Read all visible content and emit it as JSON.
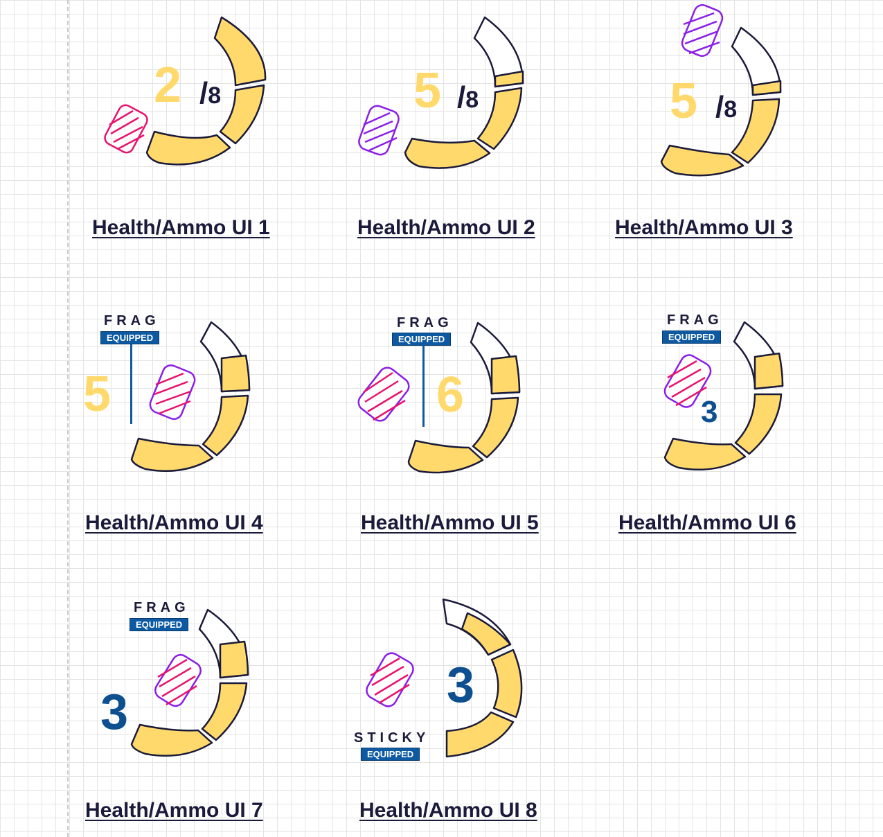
{
  "colors": {
    "fill_yellow": "#ffd96b",
    "outline": "#1a1a3a",
    "grenade_pink": "#e8126d",
    "grenade_purple": "#8a1ee8",
    "tag_blue": "#0d5aa3",
    "count_blue": "#0d4f8f"
  },
  "mockups": [
    {
      "caption": "Health/Ammo UI 1",
      "count": "2",
      "slash": "/",
      "total": "8",
      "grenade_icon": "pink-grenade-icon"
    },
    {
      "caption": "Health/Ammo UI 2",
      "count": "5",
      "slash": "/",
      "total": "8",
      "grenade_icon": "purple-grenade-icon"
    },
    {
      "caption": "Health/Ammo UI 3",
      "count": "5",
      "slash": "/",
      "total": "8",
      "grenade_icon": "purple-grenade-icon"
    },
    {
      "caption": "Health/Ammo UI 4",
      "count": "5",
      "weapon": "FRAG",
      "tag": "EQUIPPED",
      "grenade_icon": "frag-grenade-icon"
    },
    {
      "caption": "Health/Ammo UI 5",
      "count": "6",
      "weapon": "FRAG",
      "tag": "EQUIPPED",
      "grenade_icon": "frag-grenade-icon"
    },
    {
      "caption": "Health/Ammo UI 6",
      "count": "3",
      "weapon": "FRAG",
      "tag": "EQUIPPED",
      "grenade_icon": "frag-grenade-icon"
    },
    {
      "caption": "Health/Ammo UI 7",
      "count": "3",
      "weapon": "FRAG",
      "tag": "EQUIPPED",
      "grenade_icon": "frag-grenade-icon"
    },
    {
      "caption": "Health/Ammo UI 8",
      "count": "3",
      "weapon": "STICKY",
      "tag": "EQUIPPED",
      "grenade_icon": "sticky-grenade-icon"
    }
  ]
}
